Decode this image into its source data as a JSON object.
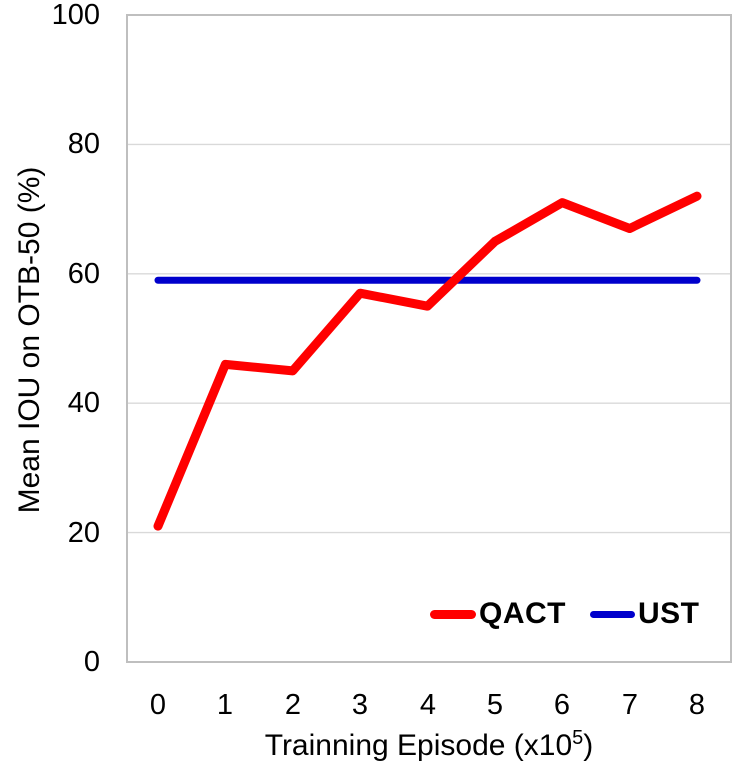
{
  "chart_data": {
    "type": "line",
    "xlabel": "Trainning Episode (x10⁵)",
    "xlabel_parts": {
      "prefix": "Trainning Episode (x10",
      "sup": "5",
      "suffix": ")"
    },
    "ylabel": "Mean IOU on OTB-50 (%)",
    "x": [
      0,
      1,
      2,
      3,
      4,
      5,
      6,
      7,
      8
    ],
    "series": [
      {
        "name": "QACT",
        "color": "#ff0000",
        "stroke_width": 9,
        "values": [
          21,
          46,
          45,
          57,
          55,
          65,
          71,
          67,
          72
        ]
      },
      {
        "name": "UST",
        "color": "#0000cc",
        "stroke_width": 7,
        "values": [
          59,
          59,
          59,
          59,
          59,
          59,
          59,
          59,
          59
        ]
      }
    ],
    "ylim": [
      0,
      100
    ],
    "xlim": [
      0,
      8
    ],
    "yticks": [
      100,
      80,
      60,
      40,
      20,
      0
    ],
    "ytick_labels": [
      "100",
      "80",
      "60",
      "40",
      "20",
      "0"
    ],
    "xtick_labels": [
      "0",
      "1",
      "2",
      "3",
      "4",
      "5",
      "6",
      "7",
      "8"
    ],
    "grid": "horizontal",
    "grid_color": "#d9d9d9",
    "frame_color": "#bfbfbf",
    "legend_position": "inside-bottom-right"
  },
  "legend": {
    "items": [
      {
        "label": "QACT",
        "color": "#ff0000"
      },
      {
        "label": "UST",
        "color": "#0000cc"
      }
    ]
  }
}
